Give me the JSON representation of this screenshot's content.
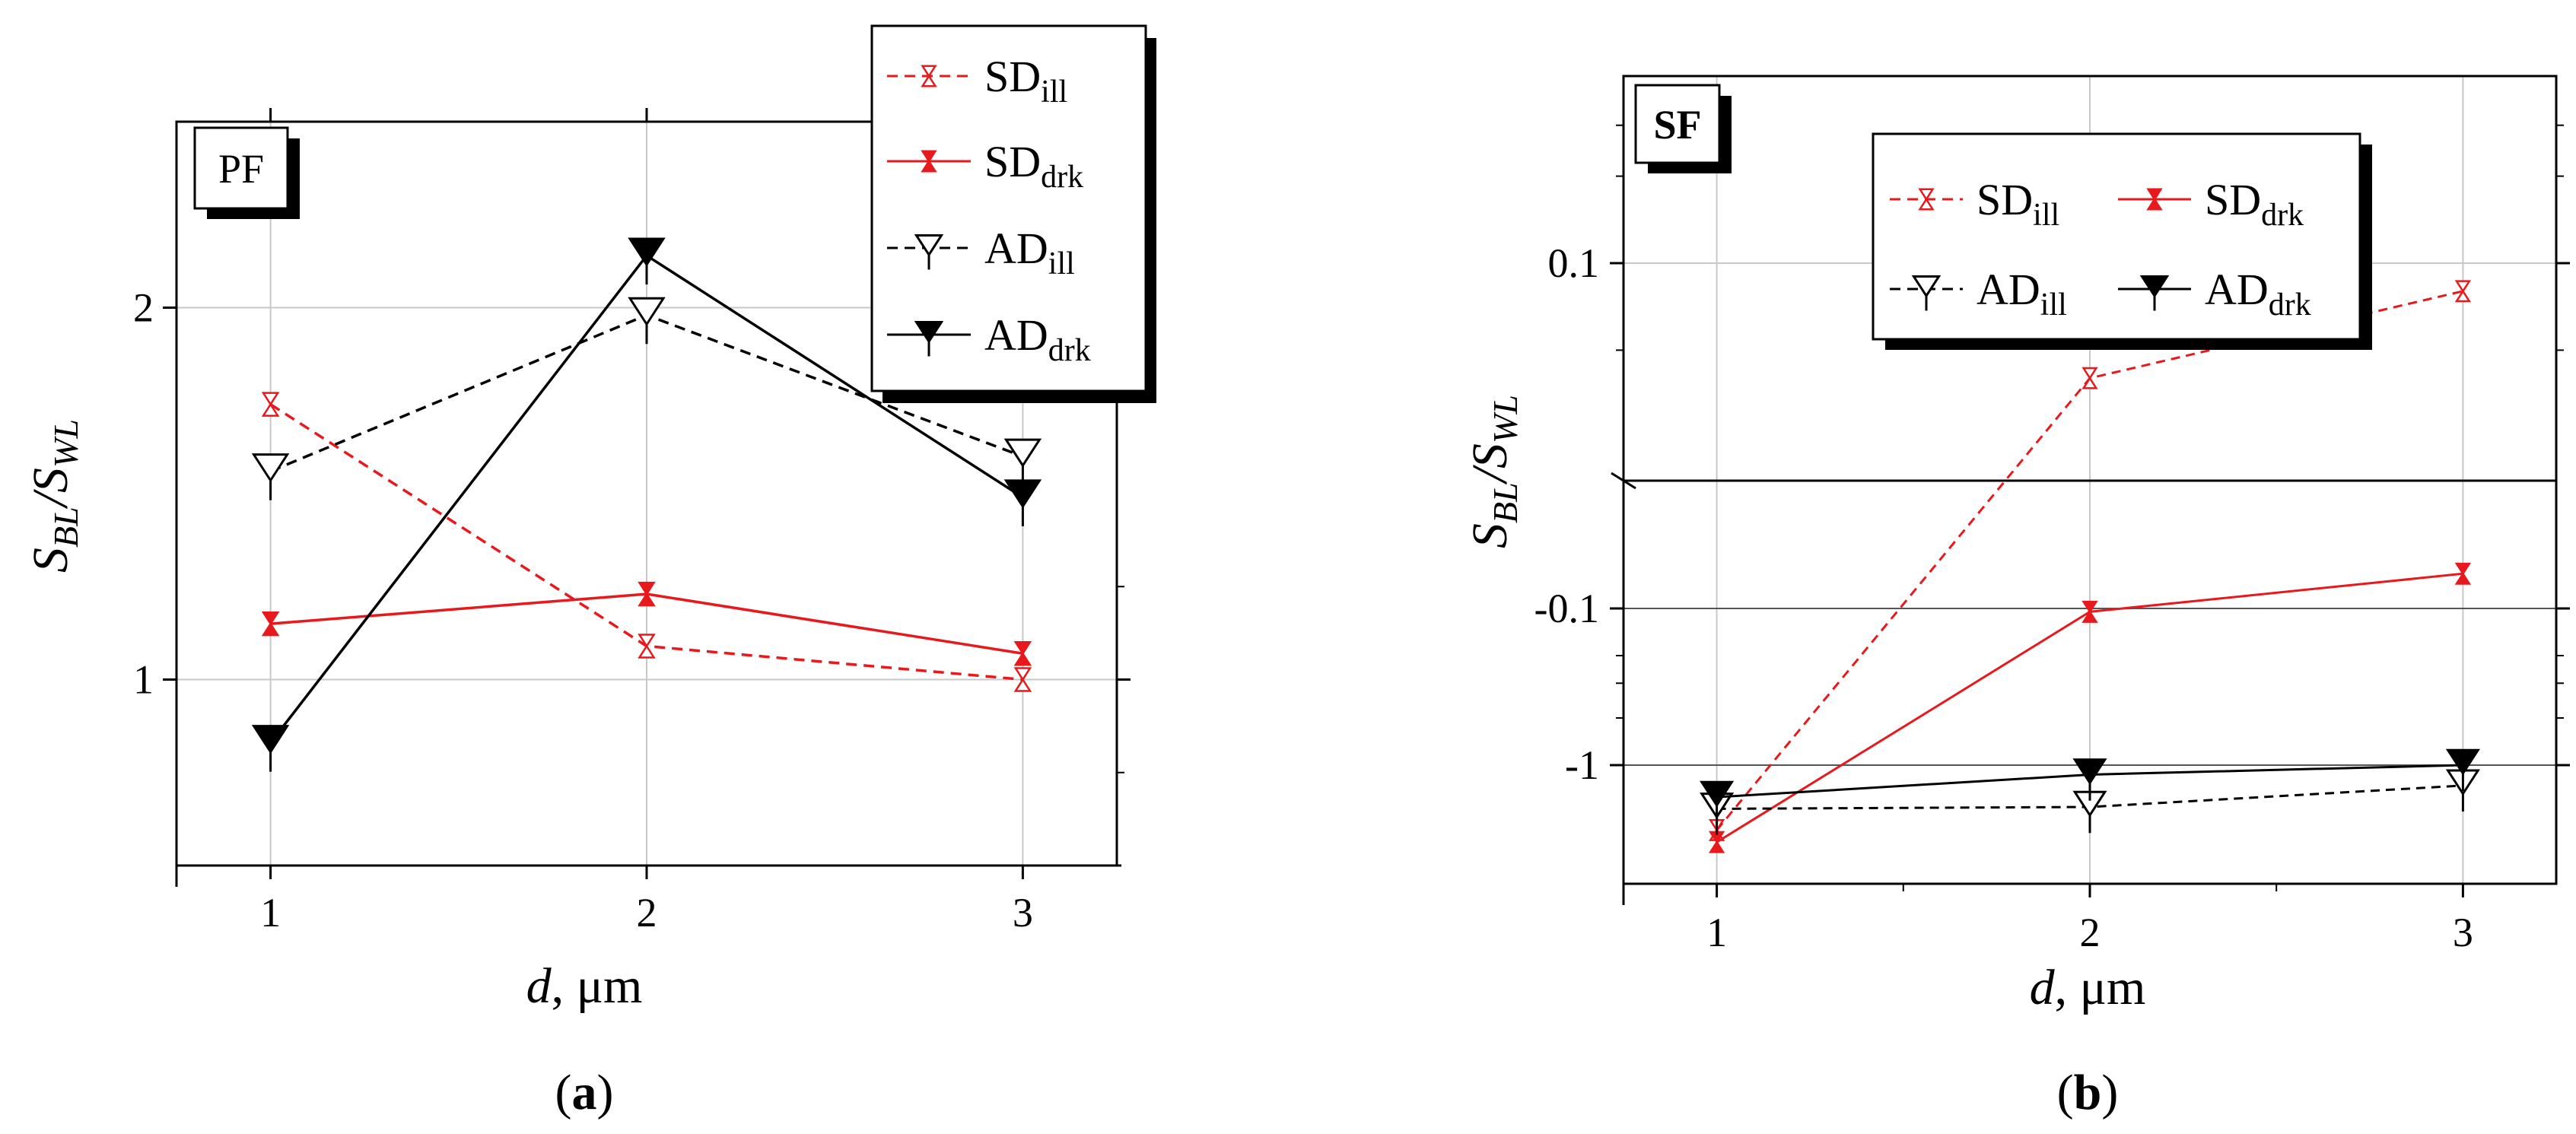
{
  "panels": [
    {
      "caption_prefix": "(",
      "caption_letter": "a",
      "caption_suffix": ")",
      "badge": "PF",
      "chart_data": {
        "type": "line",
        "title": "",
        "xlabel_var": "d",
        "xlabel_unit": ", μm",
        "ylabel_main": "S",
        "ylabel_sub1": "BL",
        "ylabel_slash": "/S",
        "ylabel_sub2": "WL",
        "x": [
          1,
          2,
          3
        ],
        "xlim": [
          0.75,
          3.25
        ],
        "ylim": [
          0.5,
          2.5
        ],
        "xticks": [
          "1",
          "2",
          "3"
        ],
        "yticks": [
          {
            "value": 1,
            "label": "1"
          },
          {
            "value": 2,
            "label": "2"
          }
        ],
        "grid": true,
        "legend_position": "top-right",
        "series": [
          {
            "base": "SD",
            "sub": "ill",
            "color": "#e8191c",
            "line": "dashed",
            "marker": "open-bowtie",
            "values": [
              1.74,
              1.09,
              1.0
            ]
          },
          {
            "base": "SD",
            "sub": "drk",
            "color": "#e8191c",
            "line": "solid",
            "marker": "filled-bowtie",
            "values": [
              1.15,
              1.23,
              1.07
            ]
          },
          {
            "base": "AD",
            "sub": "ill",
            "color": "#000000",
            "line": "dashed",
            "marker": "open-triangle",
            "values": [
              1.56,
              1.98,
              1.6
            ]
          },
          {
            "base": "AD",
            "sub": "drk",
            "color": "#000000",
            "line": "solid",
            "marker": "filled-triangle",
            "values": [
              0.83,
              2.14,
              1.49
            ]
          }
        ]
      }
    },
    {
      "caption_prefix": "(",
      "caption_letter": "b",
      "caption_suffix": ")",
      "badge": "SF",
      "chart_data": {
        "type": "line",
        "title": "",
        "xlabel_var": "d",
        "xlabel_unit": ", μm",
        "ylabel_main": "S",
        "ylabel_sub1": "BL",
        "ylabel_slash": "/S",
        "ylabel_sub2": "WL",
        "x": [
          1,
          2,
          3
        ],
        "xlim": [
          0.75,
          3.25
        ],
        "yscale": "broken-log",
        "yticks": [
          {
            "value": 0.1,
            "label": "0.1"
          },
          {
            "value": -0.1,
            "label": "-0.1"
          },
          {
            "value": -1,
            "label": "-1"
          }
        ],
        "grid": true,
        "legend_position": "top-center",
        "series": [
          {
            "base": "SD",
            "sub": "ill",
            "color": "#e8191c",
            "line": "dashed",
            "marker": "open-bowtie",
            "values": [
              -2.6,
              0.04,
              0.08
            ]
          },
          {
            "base": "SD",
            "sub": "drk",
            "color": "#e8191c",
            "line": "solid",
            "marker": "filled-bowtie",
            "values": [
              -3.1,
              -0.105,
              -0.06
            ]
          },
          {
            "base": "AD",
            "sub": "ill",
            "color": "#000000",
            "line": "dashed",
            "marker": "open-triangle",
            "values": [
              -1.9,
              -1.85,
              -1.35
            ]
          },
          {
            "base": "AD",
            "sub": "drk",
            "color": "#000000",
            "line": "solid",
            "marker": "filled-triangle",
            "values": [
              -1.6,
              -1.15,
              -1.0
            ]
          }
        ]
      }
    }
  ]
}
